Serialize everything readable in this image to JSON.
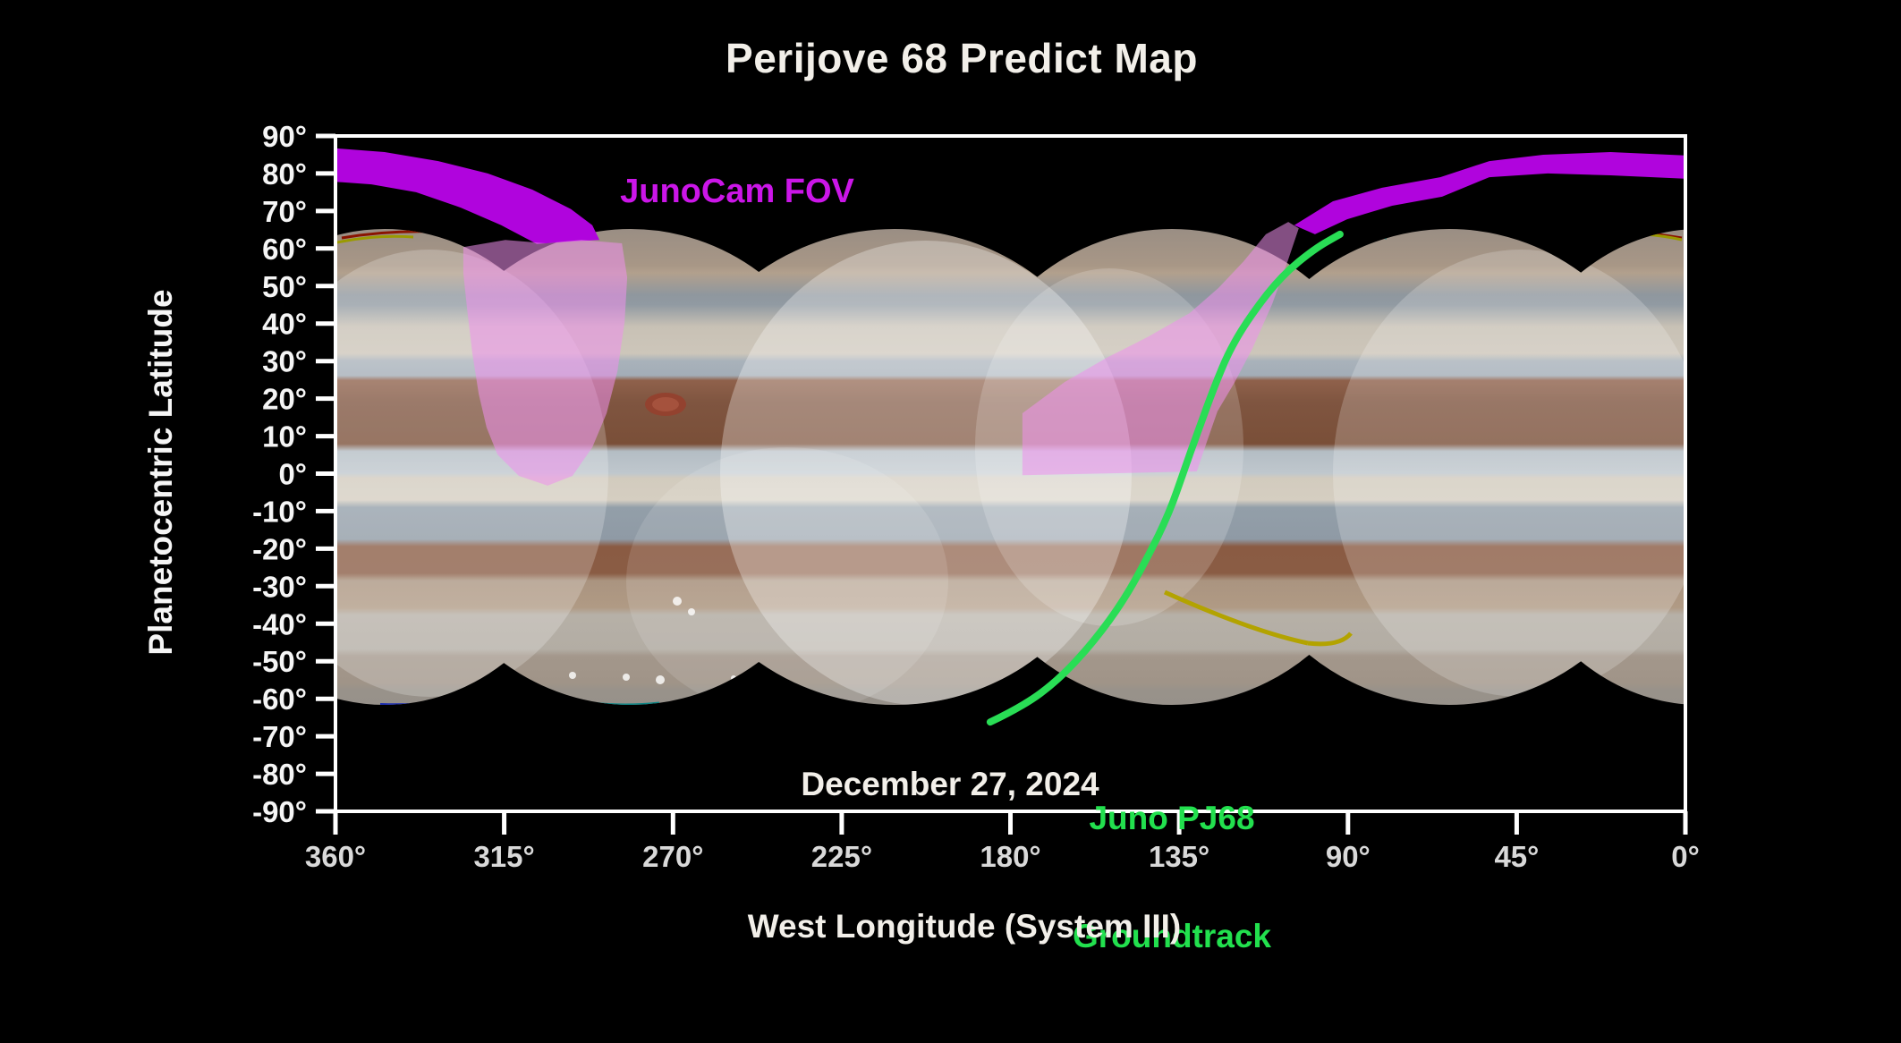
{
  "title": "Perijove 68 Predict Map",
  "colors": {
    "background": "#000000",
    "axis": "#ffffff",
    "title_text": "#f2efe9",
    "tick_text_x": "#d9d9d9",
    "tick_text_y": "#f5f5f5",
    "fov_solid": "#b004dd",
    "fov_translucent": "#ee8fec",
    "fov_label": "#cb16e8",
    "groundtrack": "#29dd55",
    "groundtrack_label": "#22e04e",
    "date_text": "#f2efe9"
  },
  "annotations": {
    "fov_label": "JunoCam FOV",
    "date_label": "December 27, 2024",
    "groundtrack_label_line1": "Juno PJ68",
    "groundtrack_label_line2": "Groundtrack"
  },
  "axes": {
    "x": {
      "label": "West Longitude (System III)",
      "tick_values": [
        360,
        315,
        270,
        225,
        180,
        135,
        90,
        45,
        0
      ],
      "tick_labels": [
        "360°",
        "315°",
        "270°",
        "225°",
        "180°",
        "135°",
        "90°",
        "45°",
        "0°"
      ]
    },
    "y": {
      "label": "Planetocentric Latitude",
      "tick_values": [
        90,
        80,
        70,
        60,
        50,
        40,
        30,
        20,
        10,
        0,
        -10,
        -20,
        -30,
        -40,
        -50,
        -60,
        -70,
        -80,
        -90
      ],
      "tick_labels": [
        "90°",
        "80°",
        "70°",
        "60°",
        "50°",
        "40°",
        "30°",
        "20°",
        "10°",
        "0°",
        "-10°",
        "-20°",
        "-30°",
        "-40°",
        "-50°",
        "-60°",
        "-70°",
        "-80°",
        "-90°"
      ]
    }
  },
  "chart_data": {
    "type": "map",
    "title": "Perijove 68 Predict Map",
    "xlabel": "West Longitude (System III)",
    "ylabel": "Planetocentric Latitude",
    "xlim": [
      360,
      0
    ],
    "ylim": [
      -90,
      90
    ],
    "grid": false,
    "basemap_latitude_coverage": [
      -65,
      65
    ],
    "groundtrack": {
      "name": "Juno PJ68 Groundtrack",
      "points_lon_lat": [
        [
          185.4,
          -66.2
        ],
        [
          176.8,
          -62.1
        ],
        [
          167.2,
          -55.0
        ],
        [
          157.7,
          -44.7
        ],
        [
          149.6,
          -33.5
        ],
        [
          143.4,
          -22.3
        ],
        [
          137.6,
          -10.4
        ],
        [
          133.8,
          0.6
        ],
        [
          129.8,
          11.8
        ],
        [
          125.7,
          23.0
        ],
        [
          121.4,
          33.3
        ],
        [
          115.5,
          42.8
        ],
        [
          107.6,
          52.8
        ],
        [
          98.8,
          60.0
        ],
        [
          92.1,
          63.8
        ]
      ]
    },
    "fov_regions": [
      {
        "id": "junocam-fov-north-west-solid",
        "style": "solid",
        "points_lon_lat": [
          [
            360,
            86.7
          ],
          [
            346.9,
            85.7
          ],
          [
            332.6,
            83.3
          ],
          [
            319.4,
            80.0
          ],
          [
            307.5,
            75.7
          ],
          [
            297.2,
            70.5
          ],
          [
            291.5,
            66.2
          ],
          [
            289.6,
            62.3
          ],
          [
            296.8,
            61.9
          ],
          [
            306.3,
            61.2
          ],
          [
            315.8,
            66.2
          ],
          [
            326.6,
            70.9
          ],
          [
            338.5,
            75.0
          ],
          [
            350.4,
            77.1
          ],
          [
            360,
            77.8
          ]
        ]
      },
      {
        "id": "junocam-fov-left-swath",
        "style": "translucent",
        "points_lon_lat": [
          [
            325.9,
            60.4
          ],
          [
            314.7,
            62.3
          ],
          [
            303.9,
            61.4
          ],
          [
            294.4,
            62.3
          ],
          [
            283.6,
            61.4
          ],
          [
            282.2,
            52.3
          ],
          [
            282.9,
            40.4
          ],
          [
            284.8,
            27.3
          ],
          [
            287.7,
            16.1
          ],
          [
            291.5,
            7.0
          ],
          [
            296.8,
            -0.6
          ],
          [
            303.4,
            -3.2
          ],
          [
            311.1,
            -0.6
          ],
          [
            316.8,
            5.1
          ],
          [
            319.7,
            12.3
          ],
          [
            321.8,
            21.3
          ],
          [
            323.5,
            32.1
          ],
          [
            324.9,
            44.0
          ],
          [
            325.9,
            53.5
          ]
        ]
      },
      {
        "id": "junocam-fov-mid-swath",
        "style": "translucent",
        "points_lon_lat": [
          [
            176.8,
            16.1
          ],
          [
            165.6,
            24.4
          ],
          [
            154.3,
            30.9
          ],
          [
            143.4,
            36.4
          ],
          [
            132.2,
            42.8
          ],
          [
            124.5,
            49.5
          ],
          [
            117.8,
            56.6
          ],
          [
            111.9,
            63.8
          ],
          [
            105.9,
            67.1
          ],
          [
            103.1,
            65.4
          ],
          [
            105.9,
            57.1
          ],
          [
            110.2,
            45.2
          ],
          [
            115.5,
            33.3
          ],
          [
            120.2,
            24.4
          ],
          [
            124.8,
            16.6
          ],
          [
            127.6,
            8.5
          ],
          [
            130.3,
            0.6
          ],
          [
            176.8,
            -0.4
          ]
        ]
      },
      {
        "id": "junocam-fov-north-east-solid",
        "style": "solid",
        "points_lon_lat": [
          [
            104.3,
            66.2
          ],
          [
            94.0,
            72.6
          ],
          [
            80.9,
            76.2
          ],
          [
            65.4,
            79.0
          ],
          [
            52.3,
            83.3
          ],
          [
            37.9,
            85.0
          ],
          [
            20.0,
            85.7
          ],
          [
            0.2,
            84.8
          ],
          [
            0.2,
            78.6
          ],
          [
            20.0,
            79.5
          ],
          [
            36.7,
            80.0
          ],
          [
            52.3,
            79.0
          ],
          [
            64.9,
            73.8
          ],
          [
            78.2,
            71.4
          ],
          [
            90.2,
            67.8
          ],
          [
            98.8,
            63.8
          ]
        ]
      }
    ]
  }
}
